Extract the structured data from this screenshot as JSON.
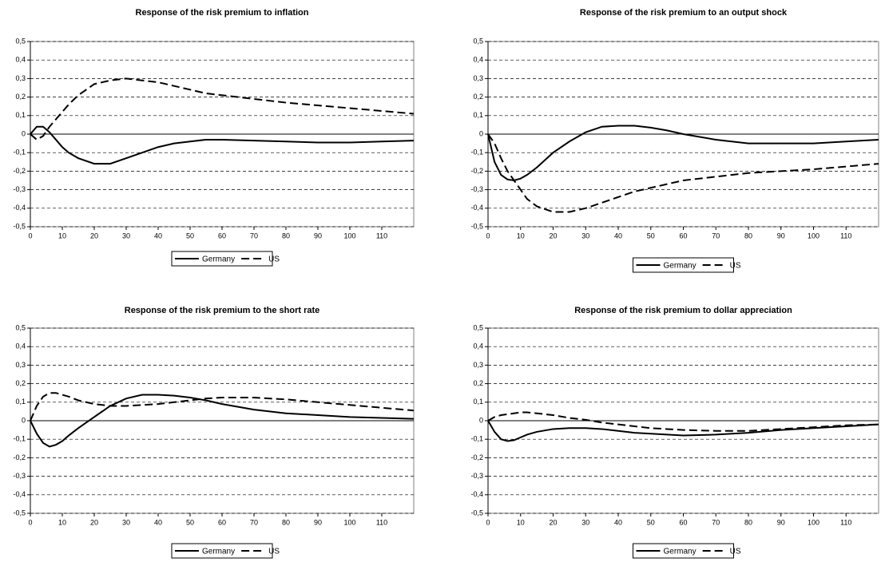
{
  "chart_data": [
    {
      "type": "line",
      "title": "Response of the risk premium to inflation",
      "x": [
        0,
        2,
        4,
        6,
        8,
        10,
        12,
        15,
        20,
        25,
        30,
        35,
        40,
        45,
        50,
        55,
        60,
        70,
        80,
        90,
        100,
        110,
        120
      ],
      "series": [
        {
          "name": "Germany",
          "color": "#000000",
          "line_style": "solid",
          "values": [
            0,
            0.04,
            0.04,
            0.01,
            -0.03,
            -0.07,
            -0.1,
            -0.13,
            -0.16,
            -0.16,
            -0.13,
            -0.1,
            -0.07,
            -0.05,
            -0.04,
            -0.03,
            -0.03,
            -0.035,
            -0.04,
            -0.045,
            -0.045,
            -0.04,
            -0.035
          ]
        },
        {
          "name": "US",
          "color": "#000000",
          "line_style": "dashed",
          "values": [
            0,
            -0.03,
            -0.01,
            0.04,
            0.08,
            0.12,
            0.16,
            0.21,
            0.27,
            0.29,
            0.3,
            0.29,
            0.28,
            0.26,
            0.24,
            0.22,
            0.21,
            0.19,
            0.17,
            0.155,
            0.14,
            0.125,
            0.11
          ]
        }
      ],
      "xlim": [
        0,
        120
      ],
      "xticks": [
        0,
        10,
        20,
        30,
        40,
        50,
        60,
        70,
        80,
        90,
        100,
        110
      ],
      "ylim": [
        -0.5,
        0.5
      ],
      "yticks": [
        {
          "value": 0.5,
          "label": "0,5"
        },
        {
          "value": 0.4,
          "label": "0,4"
        },
        {
          "value": 0.3,
          "label": "0,3"
        },
        {
          "value": 0.2,
          "label": "0,2"
        },
        {
          "value": 0.1,
          "label": "0,1"
        },
        0,
        {
          "value": -0.1,
          "label": "-0,1"
        },
        {
          "value": -0.2,
          "label": "-0,2"
        },
        {
          "value": -0.3,
          "label": "-0,3"
        },
        {
          "value": -0.4,
          "label": "-0,4"
        },
        {
          "value": -0.5,
          "label": "-0,5"
        }
      ],
      "grid": true,
      "legend": "bottom"
    },
    {
      "type": "line",
      "title": "Response of the risk premium to an output shock",
      "x": [
        0,
        2,
        4,
        6,
        8,
        10,
        12,
        15,
        20,
        25,
        30,
        35,
        40,
        45,
        50,
        55,
        60,
        70,
        80,
        90,
        100,
        110,
        120
      ],
      "series": [
        {
          "name": "Germany",
          "color": "#000000",
          "line_style": "solid",
          "values": [
            0,
            -0.15,
            -0.22,
            -0.245,
            -0.25,
            -0.24,
            -0.22,
            -0.18,
            -0.1,
            -0.04,
            0.01,
            0.04,
            0.045,
            0.045,
            0.035,
            0.02,
            0,
            -0.03,
            -0.05,
            -0.05,
            -0.05,
            -0.04,
            -0.03
          ]
        },
        {
          "name": "US",
          "color": "#000000",
          "line_style": "dashed",
          "values": [
            0,
            -0.05,
            -0.13,
            -0.2,
            -0.25,
            -0.3,
            -0.35,
            -0.39,
            -0.42,
            -0.42,
            -0.4,
            -0.37,
            -0.34,
            -0.31,
            -0.29,
            -0.27,
            -0.25,
            -0.23,
            -0.21,
            -0.2,
            -0.19,
            -0.175,
            -0.16
          ]
        }
      ],
      "xlim": [
        0,
        120
      ],
      "xticks": [
        0,
        10,
        20,
        30,
        40,
        50,
        60,
        70,
        80,
        90,
        100,
        110
      ],
      "ylim": [
        -0.5,
        0.5
      ],
      "yticks": [
        {
          "value": 0.5,
          "label": "0,5"
        },
        {
          "value": 0.4,
          "label": "0,4"
        },
        {
          "value": 0.3,
          "label": "0,3"
        },
        {
          "value": 0.2,
          "label": "0,2"
        },
        {
          "value": 0.1,
          "label": "0,1"
        },
        0,
        {
          "value": -0.1,
          "label": "-0,1"
        },
        {
          "value": -0.2,
          "label": "-0,2"
        },
        {
          "value": -0.3,
          "label": "-0,3"
        },
        {
          "value": -0.4,
          "label": "-0,4"
        },
        {
          "value": -0.5,
          "label": "-0,5"
        }
      ],
      "grid": true,
      "legend": "bottom"
    },
    {
      "type": "line",
      "title": "Response of the risk premium to the short rate",
      "x": [
        0,
        2,
        4,
        6,
        8,
        10,
        12,
        15,
        20,
        25,
        30,
        35,
        40,
        45,
        50,
        55,
        60,
        70,
        80,
        90,
        100,
        110,
        120
      ],
      "series": [
        {
          "name": "Germany",
          "color": "#000000",
          "line_style": "solid",
          "values": [
            0,
            -0.07,
            -0.12,
            -0.14,
            -0.13,
            -0.11,
            -0.08,
            -0.04,
            0.02,
            0.08,
            0.12,
            0.14,
            0.14,
            0.135,
            0.125,
            0.11,
            0.09,
            0.06,
            0.04,
            0.03,
            0.02,
            0.015,
            0.01
          ]
        },
        {
          "name": "US",
          "color": "#000000",
          "line_style": "dashed",
          "values": [
            0,
            0.08,
            0.13,
            0.15,
            0.15,
            0.14,
            0.13,
            0.11,
            0.09,
            0.08,
            0.08,
            0.085,
            0.09,
            0.1,
            0.11,
            0.12,
            0.125,
            0.125,
            0.115,
            0.1,
            0.085,
            0.07,
            0.055
          ]
        }
      ],
      "xlim": [
        0,
        120
      ],
      "xticks": [
        0,
        10,
        20,
        30,
        40,
        50,
        60,
        70,
        80,
        90,
        100,
        110
      ],
      "ylim": [
        -0.5,
        0.5
      ],
      "yticks": [
        {
          "value": 0.5,
          "label": "0,5"
        },
        {
          "value": 0.4,
          "label": "0,4"
        },
        {
          "value": 0.3,
          "label": "0,3"
        },
        {
          "value": 0.2,
          "label": "0,2"
        },
        {
          "value": 0.1,
          "label": "0,1"
        },
        0,
        {
          "value": -0.1,
          "label": "-0,1"
        },
        {
          "value": -0.2,
          "label": "-0,2"
        },
        {
          "value": -0.3,
          "label": "-0,3"
        },
        {
          "value": -0.4,
          "label": "-0,4"
        },
        {
          "value": -0.5,
          "label": "-0,5"
        }
      ],
      "grid": true,
      "legend": "bottom"
    },
    {
      "type": "line",
      "title": "Response of the risk premium to dollar appreciation",
      "x": [
        0,
        2,
        4,
        6,
        8,
        10,
        12,
        15,
        20,
        25,
        30,
        35,
        40,
        45,
        50,
        55,
        60,
        70,
        80,
        90,
        100,
        110,
        120
      ],
      "series": [
        {
          "name": "Germany",
          "color": "#000000",
          "line_style": "solid",
          "values": [
            0,
            -0.06,
            -0.1,
            -0.11,
            -0.105,
            -0.09,
            -0.075,
            -0.06,
            -0.045,
            -0.04,
            -0.04,
            -0.045,
            -0.055,
            -0.065,
            -0.07,
            -0.075,
            -0.08,
            -0.075,
            -0.065,
            -0.05,
            -0.04,
            -0.03,
            -0.02
          ]
        },
        {
          "name": "US",
          "color": "#000000",
          "line_style": "dashed",
          "values": [
            0,
            0.02,
            0.03,
            0.035,
            0.04,
            0.045,
            0.045,
            0.04,
            0.03,
            0.015,
            0.005,
            -0.01,
            -0.02,
            -0.03,
            -0.04,
            -0.045,
            -0.05,
            -0.055,
            -0.055,
            -0.045,
            -0.035,
            -0.025,
            -0.02
          ]
        }
      ],
      "xlim": [
        0,
        120
      ],
      "xticks": [
        0,
        10,
        20,
        30,
        40,
        50,
        60,
        70,
        80,
        90,
        100,
        110
      ],
      "ylim": [
        -0.5,
        0.5
      ],
      "yticks": [
        {
          "value": 0.5,
          "label": "0,5"
        },
        {
          "value": 0.4,
          "label": "0,4"
        },
        {
          "value": 0.3,
          "label": "0,3"
        },
        {
          "value": 0.2,
          "label": "0,2"
        },
        {
          "value": 0.1,
          "label": "0,1"
        },
        0,
        {
          "value": -0.1,
          "label": "-0,1"
        },
        {
          "value": -0.2,
          "label": "-0,2"
        },
        {
          "value": -0.3,
          "label": "-0,3"
        },
        {
          "value": -0.4,
          "label": "-0,4"
        },
        {
          "value": -0.5,
          "label": "-0,5"
        }
      ],
      "grid": true,
      "legend": "bottom"
    }
  ]
}
